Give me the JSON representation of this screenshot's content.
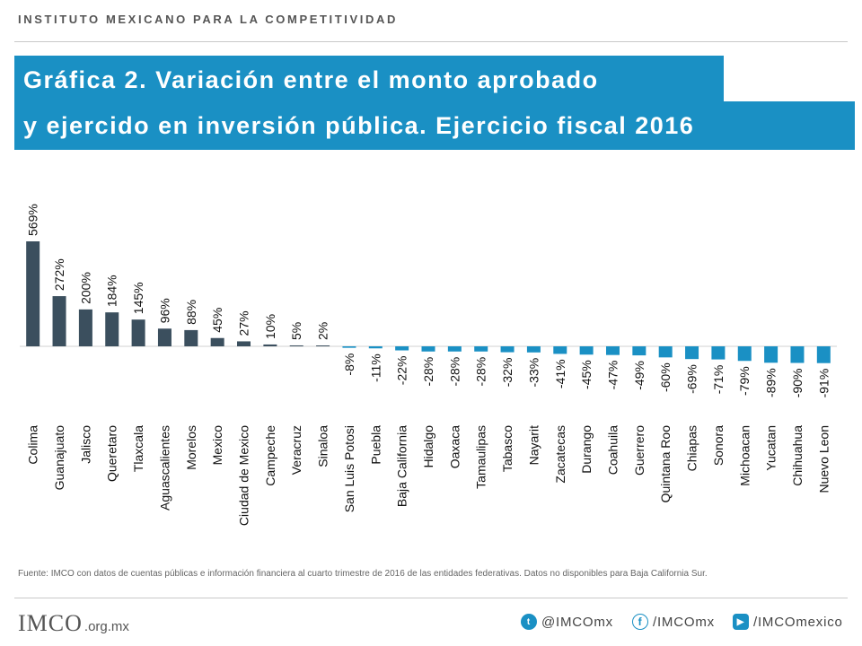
{
  "header": {
    "org_name": "INSTITUTO MEXICANO PARA LA COMPETITIVIDAD"
  },
  "title": {
    "line1": "Gráfica 2. Variación entre el monto aprobado",
    "line2": "y ejercido en inversión pública. Ejercicio fiscal 2016"
  },
  "chart_data": {
    "type": "bar",
    "title": "Gráfica 2. Variación entre el monto aprobado y ejercido en inversión pública. Ejercicio fiscal 2016",
    "xlabel": "",
    "ylabel": "",
    "categories": [
      "Colima",
      "Guanajuato",
      "Jalisco",
      "Queretaro",
      "Tlaxcala",
      "Aguascalientes",
      "Morelos",
      "Mexico",
      "Ciudad de Mexico",
      "Campeche",
      "Veracruz",
      "Sinaloa",
      "San Luis Potosi",
      "Puebla",
      "Baja California",
      "Hidalgo",
      "Oaxaca",
      "Tamaulipas",
      "Tabasco",
      "Nayarit",
      "Zacatecas",
      "Durango",
      "Coahuila",
      "Guerrero",
      "Quintana Roo",
      "Chiapas",
      "Sonora",
      "Michoacan",
      "Yucatan",
      "Chihuahua",
      "Nuevo Leon"
    ],
    "values": [
      569,
      272,
      200,
      184,
      145,
      96,
      88,
      45,
      27,
      10,
      5,
      2,
      -8,
      -11,
      -22,
      -28,
      -28,
      -28,
      -32,
      -33,
      -41,
      -45,
      -47,
      -49,
      -60,
      -69,
      -71,
      -79,
      -89,
      -90,
      -91
    ],
    "value_labels": [
      "569%",
      "272%",
      "200%",
      "184%",
      "145%",
      "96%",
      "88%",
      "45%",
      "27%",
      "10%",
      "5%",
      "2%",
      "-8%",
      "-11%",
      "-22%",
      "-28%",
      "-28%",
      "-28%",
      "-32%",
      "-33%",
      "-41%",
      "-45%",
      "-47%",
      "-49%",
      "-60%",
      "-69%",
      "-71%",
      "-79%",
      "-89%",
      "-90%",
      "-91%"
    ],
    "colors": {
      "positive": "#3b4f5e",
      "negative": "#1a90c4"
    },
    "grid": false,
    "legend": "none"
  },
  "footer": {
    "source": "Fuente: IMCO con datos de cuentas públicas e información financiera al cuarto trimestre de 2016 de las entidades federativas. Datos no disponibles para Baja California Sur.",
    "logo_text": "IMCO",
    "logo_suffix": ".org.mx",
    "twitter": "@IMCOmx",
    "facebook": "/IMCOmx",
    "youtube": "/IMCOmexico"
  }
}
